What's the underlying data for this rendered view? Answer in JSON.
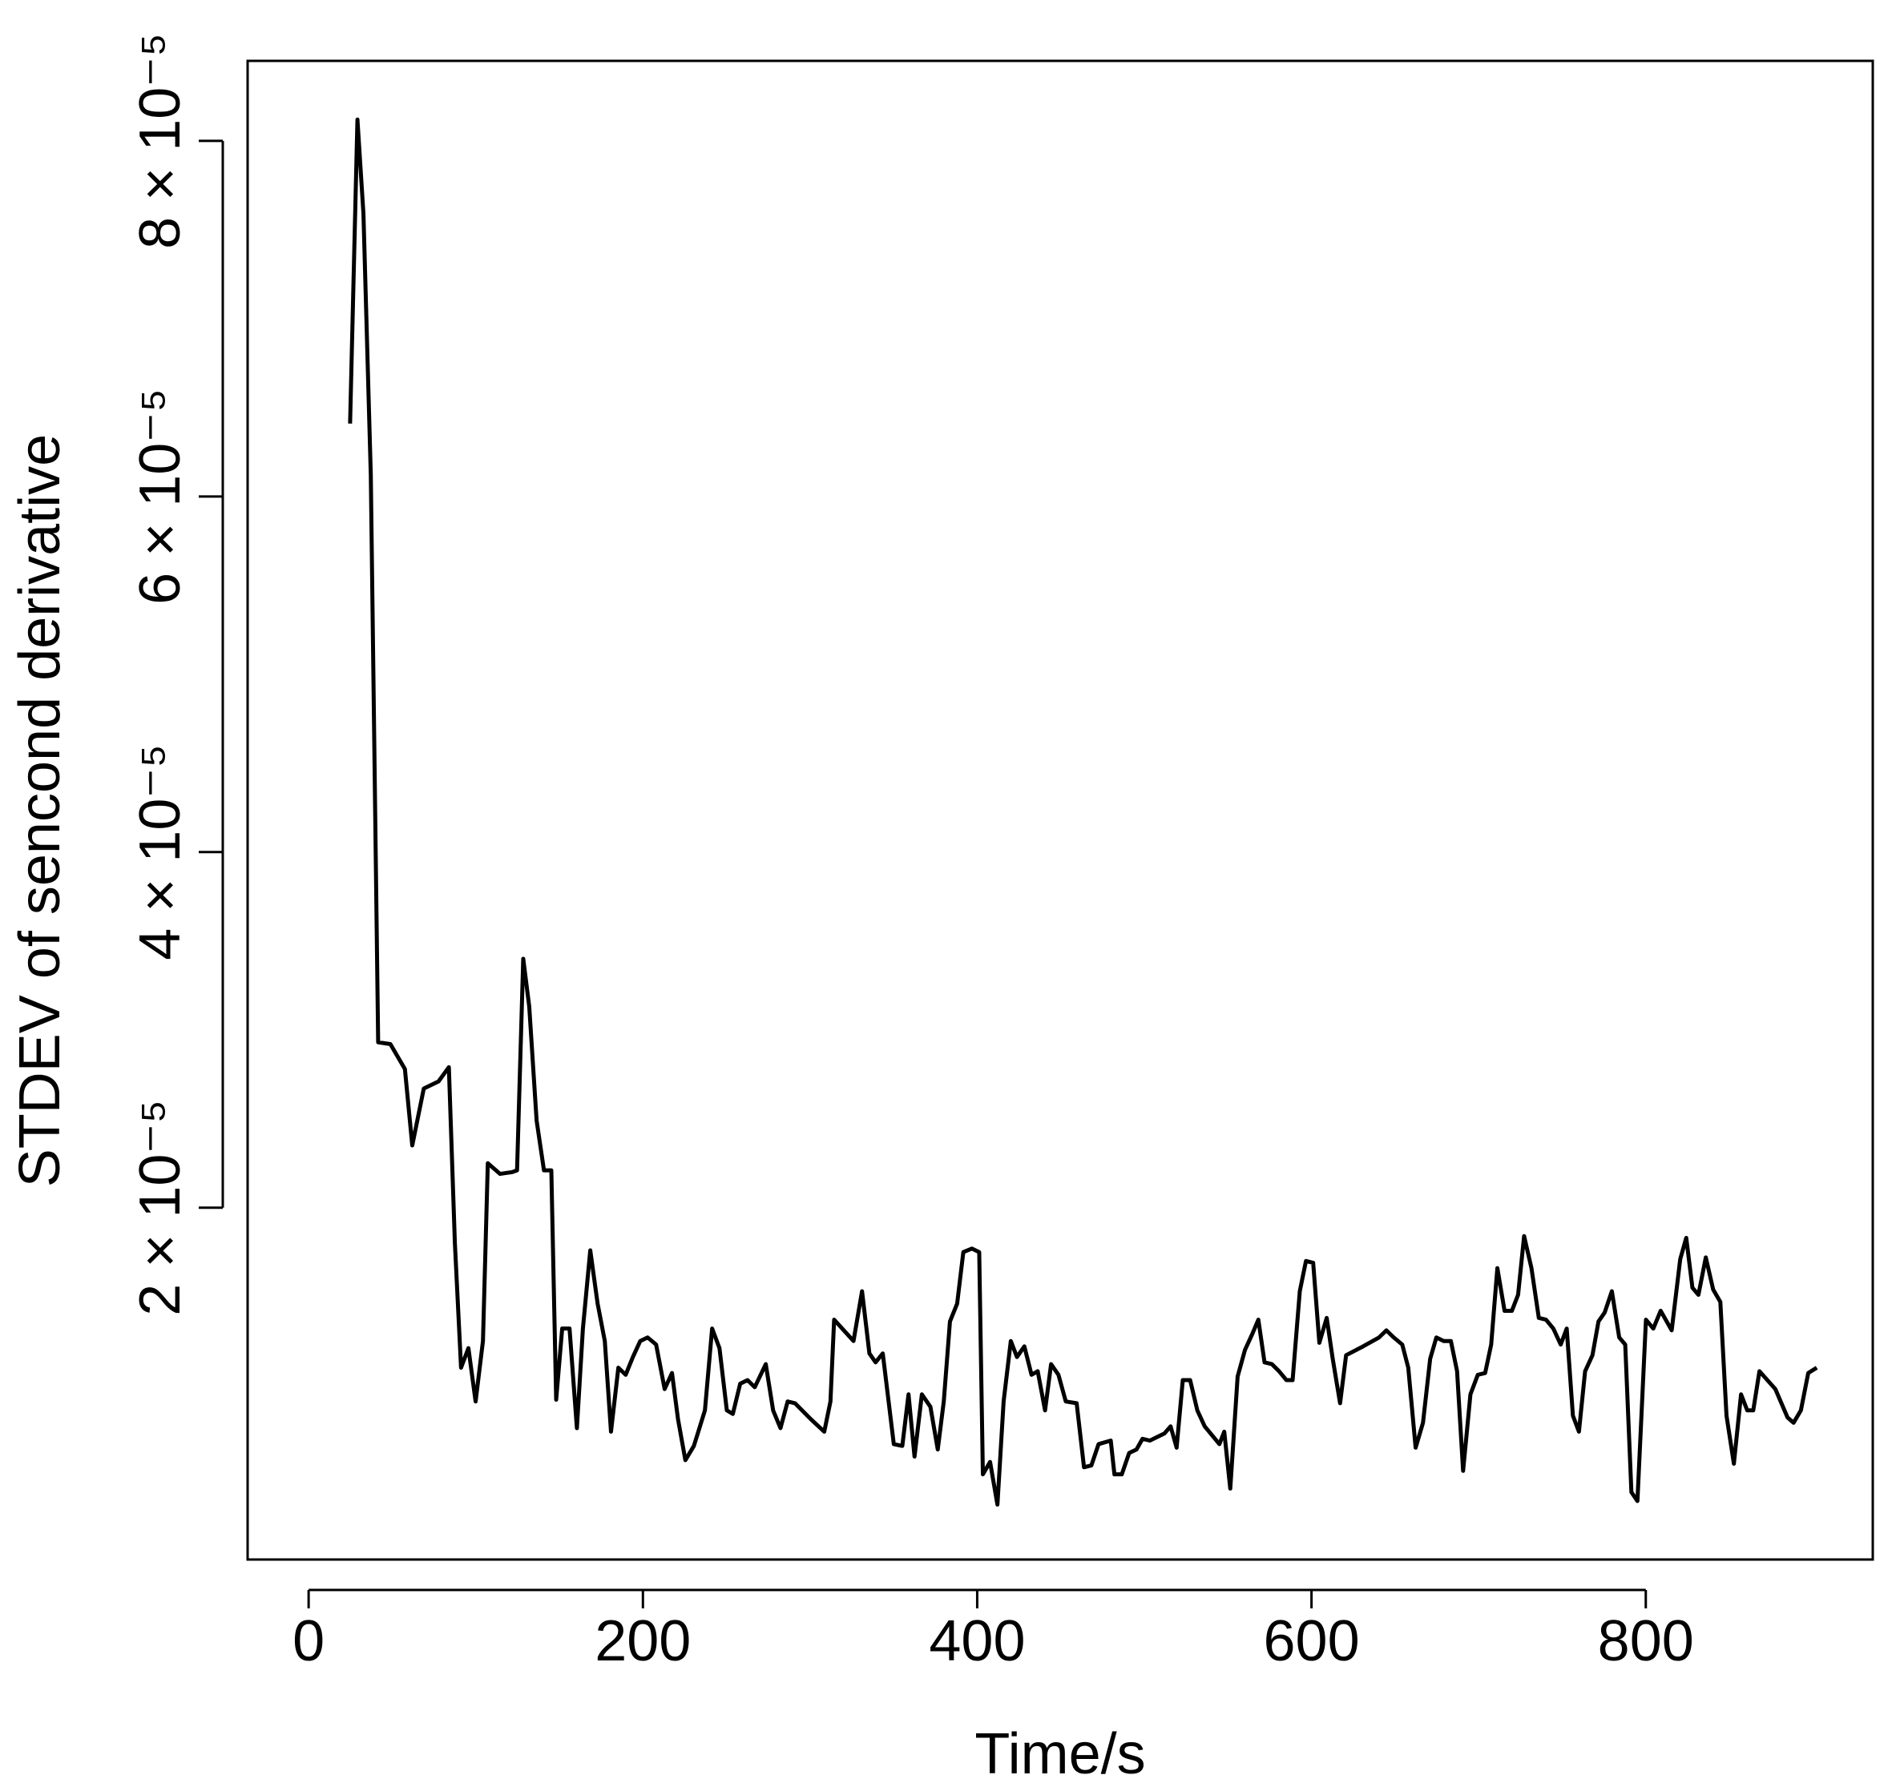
{
  "chart_data": {
    "type": "line",
    "x_label": "Time/s",
    "y_label": "STDEV of sencond derivative",
    "color": "#000000",
    "xlim": [
      -36.5,
      935.8
    ],
    "ylim": [
      2.1e-07,
      8.45e-05
    ],
    "xticks": [
      0,
      200,
      400,
      600,
      800
    ],
    "yticks": [
      {
        "value": 2e-05,
        "label": "2 × 10⁻⁵"
      },
      {
        "value": 4e-05,
        "label": "4 × 10⁻⁵"
      },
      {
        "value": 6e-05,
        "label": "6 × 10⁻⁵"
      },
      {
        "value": 8e-05,
        "label": "8 × 10⁻⁵"
      }
    ],
    "x": [
      24.8,
      29.2,
      32.8,
      37.2,
      41.6,
      48.9,
      57.6,
      62.0,
      68.9,
      77.7,
      83.9,
      87.5,
      91.2,
      95.6,
      99.9,
      104.3,
      107.2,
      114.5,
      121.8,
      124.7,
      128.4,
      132.0,
      136.4,
      140.8,
      145.2,
      148.1,
      151.7,
      156.1,
      160.5,
      164.1,
      168.5,
      172.9,
      177.2,
      180.9,
      185.3,
      189.7,
      194.0,
      198.4,
      202.8,
      207.9,
      213.0,
      217.4,
      221.0,
      225.4,
      230.5,
      237.1,
      241.4,
      245.8,
      250.2,
      253.8,
      258.2,
      262.6,
      266.9,
      273.5,
      277.9,
      282.3,
      286.6,
      291.0,
      300.5,
      308.5,
      312.2,
      314.4,
      326.0,
      331.1,
      335.5,
      339.2,
      343.5,
      350.1,
      355.2,
      358.9,
      362.5,
      366.9,
      372.0,
      376.4,
      380.0,
      383.7,
      388.0,
      391.7,
      396.8,
      401.2,
      403.4,
      407.7,
      412.1,
      415.8,
      420.1,
      423.8,
      428.2,
      432.5,
      436.2,
      440.6,
      444.2,
      448.6,
      453.0,
      459.5,
      463.9,
      468.3,
      472.6,
      479.9,
      482.1,
      486.5,
      490.9,
      495.3,
      498.9,
      503.3,
      507.7,
      512.0,
      515.7,
      519.3,
      523.0,
      527.4,
      531.7,
      536.1,
      540.5,
      544.9,
      547.8,
      551.4,
      555.8,
      560.2,
      564.6,
      568.2,
      571.9,
      576.3,
      580.6,
      585.0,
      588.7,
      593.0,
      596.7,
      601.0,
      604.7,
      609.1,
      612.7,
      617.1,
      620.7,
      630.9,
      640.4,
      644.8,
      649.2,
      654.3,
      657.9,
      662.3,
      666.7,
      671.0,
      674.7,
      679.1,
      683.4,
      687.1,
      690.7,
      695.1,
      699.5,
      703.9,
      707.5,
      711.2,
      715.5,
      719.9,
      723.6,
      727.2,
      731.6,
      736.0,
      740.3,
      744.7,
      749.1,
      752.7,
      756.4,
      760.0,
      763.7,
      768.1,
      771.7,
      775.4,
      779.7,
      784.1,
      787.7,
      791.4,
      795.0,
      800.1,
      804.5,
      808.9,
      815.5,
      820.6,
      824.2,
      827.9,
      831.5,
      835.9,
      840.3,
      844.6,
      848.3,
      852.7,
      857.0,
      860.7,
      864.3,
      868.0,
      877.5,
      884.8,
      888.4,
      892.8,
      897.2,
      902.3
    ],
    "values": [
      6.41e-05,
      8.12e-05,
      7.59e-05,
      6.12e-05,
      2.93e-05,
      2.92e-05,
      2.78e-05,
      2.35e-05,
      2.67e-05,
      2.71e-05,
      2.79e-05,
      1.8e-05,
      1.1e-05,
      1.21e-05,
      9.1e-06,
      1.25e-05,
      2.25e-05,
      2.19e-05,
      2.2e-05,
      2.21e-05,
      3.4e-05,
      3.13e-05,
      2.49e-05,
      2.21e-05,
      2.21e-05,
      9.2e-06,
      1.32e-05,
      1.32e-05,
      7.6e-06,
      1.32e-05,
      1.76e-05,
      1.46e-05,
      1.25e-05,
      7.4e-06,
      1.1e-05,
      1.06e-05,
      1.16e-05,
      1.25e-05,
      1.27e-05,
      1.23e-05,
      9.8e-06,
      1.07e-05,
      8.1e-06,
      5.8e-06,
      6.6e-06,
      8.6e-06,
      1.32e-05,
      1.21e-05,
      8.6e-06,
      8.4e-06,
      1.01e-05,
      1.03e-05,
      9.9e-06,
      1.12e-05,
      8.6e-06,
      7.6e-06,
      9.1e-06,
      9e-06,
      8.1e-06,
      7.4e-06,
      9.1e-06,
      1.37e-05,
      1.25e-05,
      1.53e-05,
      1.18e-05,
      1.13e-05,
      1.18e-05,
      6.7e-06,
      6.6e-06,
      9.5e-06,
      6e-06,
      9.5e-06,
      8.8e-06,
      6.4e-06,
      9.1e-06,
      1.36e-05,
      1.46e-05,
      1.75e-05,
      1.77e-05,
      1.75e-05,
      5e-06,
      5.7e-06,
      3.3e-06,
      9.1e-06,
      1.25e-05,
      1.16e-05,
      1.22e-05,
      1.06e-05,
      1.08e-05,
      8.6e-06,
      1.12e-05,
      1.06e-05,
      9.1e-06,
      9e-06,
      5.4e-06,
      5.5e-06,
      6.7e-06,
      6.9e-06,
      5e-06,
      5e-06,
      6.2e-06,
      6.4e-06,
      7e-06,
      6.9e-06,
      7.1e-06,
      7.3e-06,
      7.7e-06,
      6.5e-06,
      1.03e-05,
      1.03e-05,
      8.6e-06,
      7.7e-06,
      7.2e-06,
      6.7e-06,
      7.4e-06,
      4.2e-06,
      1.05e-05,
      1.2e-05,
      1.29e-05,
      1.37e-05,
      1.13e-05,
      1.12e-05,
      1.08e-05,
      1.03e-05,
      1.03e-05,
      1.53e-05,
      1.7e-05,
      1.69e-05,
      1.24e-05,
      1.38e-05,
      1.15e-05,
      9e-06,
      1.17e-05,
      1.22e-05,
      1.27e-05,
      1.31e-05,
      1.27e-05,
      1.23e-05,
      1.1e-05,
      6.5e-06,
      7.9e-06,
      1.15e-05,
      1.27e-05,
      1.25e-05,
      1.25e-05,
      1.08e-05,
      5.2e-06,
      9.5e-06,
      1.06e-05,
      1.07e-05,
      1.23e-05,
      1.66e-05,
      1.42e-05,
      1.42e-05,
      1.51e-05,
      1.84e-05,
      1.66e-05,
      1.38e-05,
      1.37e-05,
      1.32e-05,
      1.23e-05,
      1.32e-05,
      8.3e-06,
      7.4e-06,
      1.08e-05,
      1.17e-05,
      1.36e-05,
      1.41e-05,
      1.53e-05,
      1.27e-05,
      1.23e-05,
      4e-06,
      3.5e-06,
      1.37e-05,
      1.32e-05,
      1.42e-05,
      1.31e-05,
      1.71e-05,
      1.83e-05,
      1.55e-05,
      1.51e-05,
      1.72e-05,
      1.54e-05,
      1.47e-05,
      8.3e-06,
      5.6e-06,
      9.5e-06,
      8.6e-06,
      8.6e-06,
      1.08e-05,
      9.8e-06,
      8.2e-06,
      7.9e-06,
      8.6e-06,
      1.07e-05,
      1.1e-05
    ]
  }
}
